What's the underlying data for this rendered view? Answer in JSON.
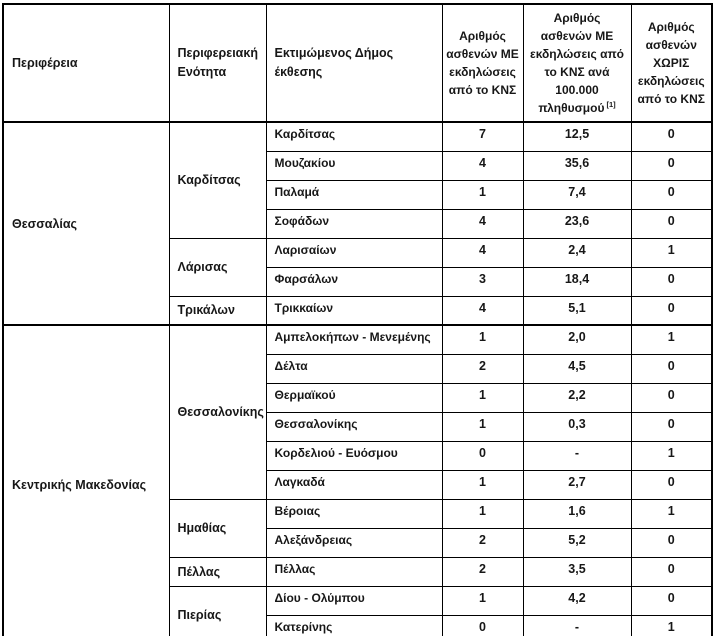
{
  "table": {
    "headers": {
      "region": "Περιφέρεια",
      "regional_unit": "Περιφερειακή Ενότητα",
      "municipality": "Εκτιμώμενος Δήμος έκθεσης",
      "with_cns": "Αριθμός ασθενών ΜΕ εκδηλώσεις από το ΚΝΣ",
      "per_100k": "Αριθμός ασθενών ΜΕ εκδηλώσεις από το ΚΝΣ ανά 100.000 πληθυσμού",
      "per_100k_footnote": "[1]",
      "without_cns": "Αριθμός ασθενών ΧΩΡΙΣ εκδηλώσεις από το ΚΝΣ"
    },
    "regions": [
      {
        "name": "Θεσσαλίας",
        "units": [
          {
            "name": "Καρδίτσας",
            "municipalities": [
              {
                "name": "Καρδίτσας",
                "with_cns": "7",
                "per_100k": "12,5",
                "without_cns": "0"
              },
              {
                "name": "Μουζακίου",
                "with_cns": "4",
                "per_100k": "35,6",
                "without_cns": "0"
              },
              {
                "name": "Παλαμά",
                "with_cns": "1",
                "per_100k": "7,4",
                "without_cns": "0"
              },
              {
                "name": "Σοφάδων",
                "with_cns": "4",
                "per_100k": "23,6",
                "without_cns": "0"
              }
            ]
          },
          {
            "name": "Λάρισας",
            "municipalities": [
              {
                "name": "Λαρισαίων",
                "with_cns": "4",
                "per_100k": "2,4",
                "without_cns": "1"
              },
              {
                "name": "Φαρσάλων",
                "with_cns": "3",
                "per_100k": "18,4",
                "without_cns": "0"
              }
            ]
          },
          {
            "name": "Τρικάλων",
            "municipalities": [
              {
                "name": "Τρικκαίων",
                "with_cns": "4",
                "per_100k": "5,1",
                "without_cns": "0"
              }
            ]
          }
        ]
      },
      {
        "name": "Κεντρικής Μακεδονίας",
        "units": [
          {
            "name": "Θεσσαλονίκης",
            "municipalities": [
              {
                "name": "Αμπελοκήπων - Μενεμένης",
                "with_cns": "1",
                "per_100k": "2,0",
                "without_cns": "1"
              },
              {
                "name": "Δέλτα",
                "with_cns": "2",
                "per_100k": "4,5",
                "without_cns": "0"
              },
              {
                "name": "Θερμαϊκού",
                "with_cns": "1",
                "per_100k": "2,2",
                "without_cns": "0"
              },
              {
                "name": "Θεσσαλονίκης",
                "with_cns": "1",
                "per_100k": "0,3",
                "without_cns": "0"
              },
              {
                "name": "Κορδελιού - Ευόσμου",
                "with_cns": "0",
                "per_100k": "-",
                "without_cns": "1"
              },
              {
                "name": "Λαγκαδά",
                "with_cns": "1",
                "per_100k": "2,7",
                "without_cns": "0"
              }
            ]
          },
          {
            "name": "Ημαθίας",
            "municipalities": [
              {
                "name": "Βέροιας",
                "with_cns": "1",
                "per_100k": "1,6",
                "without_cns": "1"
              },
              {
                "name": "Αλεξάνδρειας",
                "with_cns": "2",
                "per_100k": "5,2",
                "without_cns": "0"
              }
            ]
          },
          {
            "name": "Πέλλας",
            "municipalities": [
              {
                "name": "Πέλλας",
                "with_cns": "2",
                "per_100k": "3,5",
                "without_cns": "0"
              }
            ]
          },
          {
            "name": "Πιερίας",
            "municipalities": [
              {
                "name": "Δίου - Ολύμπου",
                "with_cns": "1",
                "per_100k": "4,2",
                "without_cns": "0"
              },
              {
                "name": "Κατερίνης",
                "with_cns": "0",
                "per_100k": "-",
                "without_cns": "1"
              }
            ]
          }
        ]
      }
    ]
  }
}
